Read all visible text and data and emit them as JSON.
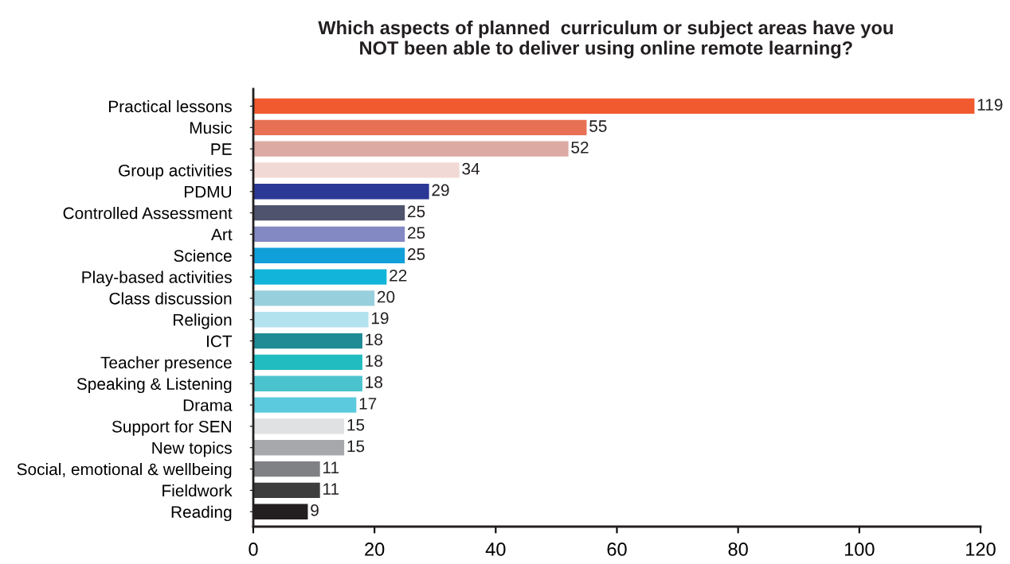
{
  "chart_data": {
    "type": "bar",
    "orientation": "horizontal",
    "title": "Which aspects of planned  curriculum or subject areas have you\nNOT been able to deliver using online remote learning?",
    "categories": [
      "Practical lessons",
      "Music",
      "PE",
      "Group activities",
      "PDMU",
      "Controlled Assessment",
      "Art",
      "Science",
      "Play-based activities",
      "Class discussion",
      "Religion",
      "ICT",
      "Teacher presence",
      "Speaking & Listening",
      "Drama",
      "Support for SEN",
      "New topics",
      "Social, emotional & wellbeing",
      "Fieldwork",
      "Reading"
    ],
    "values": [
      119,
      55,
      52,
      34,
      29,
      25,
      25,
      25,
      22,
      20,
      19,
      18,
      18,
      18,
      17,
      15,
      15,
      11,
      11,
      9
    ],
    "colors": [
      "#f05a2e",
      "#e87155",
      "#dcaaa3",
      "#f1d9d6",
      "#2b3895",
      "#50536d",
      "#8389c2",
      "#119fd9",
      "#12b5d9",
      "#98cfdc",
      "#b3e2ef",
      "#1e8b95",
      "#21bcc0",
      "#4bc3ce",
      "#5ccade",
      "#e0e1e3",
      "#a7a8ab",
      "#808184",
      "#3d3d3d",
      "#231f20"
    ],
    "xlim": [
      0,
      120
    ],
    "xticks": [
      0,
      20,
      40,
      60,
      80,
      100,
      120
    ],
    "data_labels": true,
    "grid": false,
    "legend": false
  }
}
